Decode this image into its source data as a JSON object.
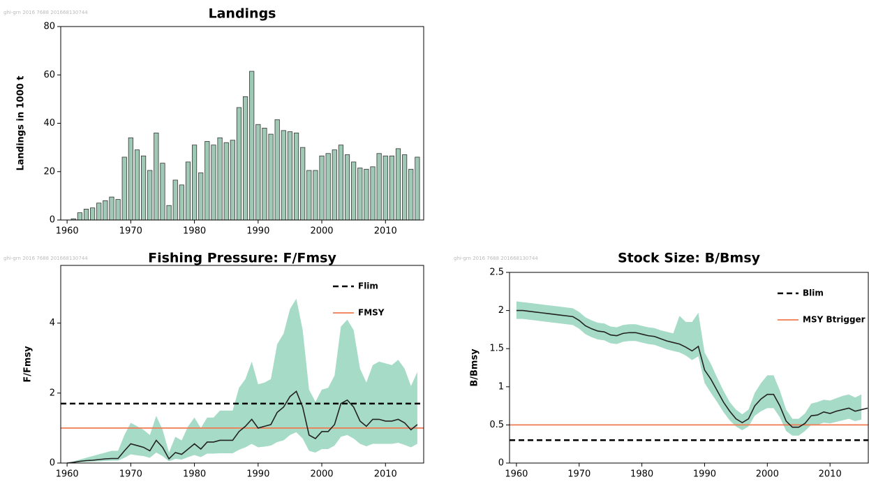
{
  "chart_data": [
    {
      "type": "bar",
      "title": "Landings",
      "ylabel": "Landings in 1000 t",
      "watermark": "ghi-grn 2016 7688 201668130744",
      "x": [
        1960,
        1961,
        1962,
        1963,
        1964,
        1965,
        1966,
        1967,
        1968,
        1969,
        1970,
        1971,
        1972,
        1973,
        1974,
        1975,
        1976,
        1977,
        1978,
        1979,
        1980,
        1981,
        1982,
        1983,
        1984,
        1985,
        1986,
        1987,
        1988,
        1989,
        1990,
        1991,
        1992,
        1993,
        1994,
        1995,
        1996,
        1997,
        1998,
        1999,
        2000,
        2001,
        2002,
        2003,
        2004,
        2005,
        2006,
        2007,
        2008,
        2009,
        2010,
        2011,
        2012,
        2013,
        2014,
        2015
      ],
      "values": [
        0,
        0.5,
        3,
        4.5,
        5,
        7,
        8,
        9.5,
        8.5,
        26,
        34,
        29,
        26.5,
        20.5,
        36,
        23.5,
        6,
        16.5,
        14.5,
        24,
        31,
        19.5,
        32.5,
        31,
        34,
        32,
        33,
        46.5,
        51,
        61.5,
        39.5,
        38,
        35.5,
        41.5,
        37,
        36.5,
        36,
        30,
        20.5,
        20.5,
        26.5,
        27.5,
        29,
        31,
        27,
        24,
        21.5,
        21,
        22,
        27.5,
        26.5,
        26.5,
        29.5,
        27,
        21,
        26
      ],
      "color": "#9fc9b5",
      "xlim": [
        1959,
        2016
      ],
      "xticks": [
        1960,
        1970,
        1980,
        1990,
        2000,
        2010
      ],
      "ylim": [
        0,
        80
      ],
      "yticks": [
        0,
        20,
        40,
        60,
        80
      ]
    },
    {
      "type": "line",
      "title": "Fishing Pressure: F/Fmsy",
      "ylabel": "F/Fmsy",
      "watermark": "ghi-grn 2016 7688 201668130744",
      "x": [
        1960,
        1961,
        1962,
        1963,
        1964,
        1965,
        1966,
        1967,
        1968,
        1969,
        1970,
        1971,
        1972,
        1973,
        1974,
        1975,
        1976,
        1977,
        1978,
        1979,
        1980,
        1981,
        1982,
        1983,
        1984,
        1985,
        1986,
        1987,
        1988,
        1989,
        1990,
        1991,
        1992,
        1993,
        1994,
        1995,
        1996,
        1997,
        1998,
        1999,
        2000,
        2001,
        2002,
        2003,
        2004,
        2005,
        2006,
        2007,
        2008,
        2009,
        2010,
        2011,
        2012,
        2013,
        2014,
        2015
      ],
      "values": [
        0,
        0.02,
        0.05,
        0.07,
        0.08,
        0.1,
        0.12,
        0.13,
        0.13,
        0.35,
        0.55,
        0.5,
        0.45,
        0.35,
        0.65,
        0.45,
        0.12,
        0.3,
        0.25,
        0.4,
        0.55,
        0.4,
        0.6,
        0.6,
        0.65,
        0.65,
        0.65,
        0.9,
        1.05,
        1.25,
        1.0,
        1.05,
        1.1,
        1.45,
        1.6,
        1.9,
        2.05,
        1.6,
        0.8,
        0.7,
        0.9,
        0.9,
        1.1,
        1.7,
        1.8,
        1.6,
        1.2,
        1.05,
        1.25,
        1.25,
        1.2,
        1.2,
        1.25,
        1.15,
        0.95,
        1.1
      ],
      "upper": [
        0,
        0.05,
        0.1,
        0.15,
        0.2,
        0.25,
        0.3,
        0.35,
        0.35,
        0.8,
        1.15,
        1.05,
        0.95,
        0.8,
        1.35,
        0.95,
        0.3,
        0.75,
        0.65,
        1.05,
        1.3,
        1.0,
        1.3,
        1.3,
        1.5,
        1.5,
        1.5,
        2.15,
        2.4,
        2.9,
        2.25,
        2.3,
        2.4,
        3.4,
        3.7,
        4.4,
        4.7,
        3.8,
        2.1,
        1.75,
        2.1,
        2.15,
        2.5,
        3.9,
        4.1,
        3.8,
        2.7,
        2.3,
        2.8,
        2.9,
        2.85,
        2.8,
        2.95,
        2.7,
        2.2,
        2.6
      ],
      "lower": [
        0,
        0.01,
        0.02,
        0.03,
        0.04,
        0.05,
        0.06,
        0.07,
        0.07,
        0.15,
        0.25,
        0.22,
        0.2,
        0.15,
        0.3,
        0.2,
        0.05,
        0.12,
        0.1,
        0.17,
        0.23,
        0.17,
        0.27,
        0.27,
        0.28,
        0.28,
        0.28,
        0.38,
        0.45,
        0.55,
        0.45,
        0.47,
        0.5,
        0.6,
        0.65,
        0.8,
        0.88,
        0.7,
        0.35,
        0.3,
        0.4,
        0.4,
        0.5,
        0.75,
        0.8,
        0.7,
        0.55,
        0.48,
        0.55,
        0.55,
        0.55,
        0.55,
        0.58,
        0.52,
        0.45,
        0.55
      ],
      "line_color": "#222222",
      "band_color": "#a6dbc7",
      "reference_lines": [
        {
          "name": "Flim",
          "value": 1.7,
          "color": "#000000",
          "style": "dashed"
        },
        {
          "name": "FMSY",
          "value": 1.0,
          "color": "#f07a50",
          "style": "solid"
        }
      ],
      "xlim": [
        1959,
        2016
      ],
      "xticks": [
        1960,
        1970,
        1980,
        1990,
        2000,
        2010
      ],
      "ylim": [
        0,
        5.65
      ],
      "yticks": [
        0,
        2,
        4
      ]
    },
    {
      "type": "line",
      "title": "Stock Size: B/Bmsy",
      "ylabel": "B/Bmsy",
      "watermark": "ghi-grn 2016 7688 201668130744",
      "x": [
        1960,
        1961,
        1962,
        1963,
        1964,
        1965,
        1966,
        1967,
        1968,
        1969,
        1970,
        1971,
        1972,
        1973,
        1974,
        1975,
        1976,
        1977,
        1978,
        1979,
        1980,
        1981,
        1982,
        1983,
        1984,
        1985,
        1986,
        1987,
        1988,
        1989,
        1990,
        1991,
        1992,
        1993,
        1994,
        1995,
        1996,
        1997,
        1998,
        1999,
        2000,
        2001,
        2002,
        2003,
        2004,
        2005,
        2006,
        2007,
        2008,
        2009,
        2010,
        2011,
        2012,
        2013,
        2014,
        2015,
        2016
      ],
      "values": [
        2.0,
        2.0,
        1.99,
        1.98,
        1.97,
        1.96,
        1.95,
        1.94,
        1.93,
        1.92,
        1.87,
        1.8,
        1.76,
        1.73,
        1.72,
        1.68,
        1.67,
        1.7,
        1.71,
        1.71,
        1.69,
        1.67,
        1.66,
        1.63,
        1.6,
        1.58,
        1.56,
        1.52,
        1.47,
        1.53,
        1.22,
        1.1,
        0.95,
        0.8,
        0.68,
        0.58,
        0.53,
        0.58,
        0.75,
        0.84,
        0.9,
        0.9,
        0.75,
        0.55,
        0.47,
        0.47,
        0.52,
        0.62,
        0.63,
        0.67,
        0.65,
        0.68,
        0.7,
        0.72,
        0.68,
        0.7,
        0.72
      ],
      "upper": [
        2.12,
        2.11,
        2.1,
        2.09,
        2.08,
        2.07,
        2.06,
        2.05,
        2.04,
        2.03,
        1.98,
        1.91,
        1.87,
        1.84,
        1.83,
        1.79,
        1.78,
        1.81,
        1.82,
        1.82,
        1.8,
        1.78,
        1.77,
        1.74,
        1.72,
        1.7,
        1.93,
        1.85,
        1.85,
        1.97,
        1.45,
        1.3,
        1.12,
        0.95,
        0.8,
        0.7,
        0.64,
        0.7,
        0.92,
        1.05,
        1.15,
        1.15,
        0.95,
        0.7,
        0.58,
        0.58,
        0.65,
        0.78,
        0.8,
        0.83,
        0.82,
        0.85,
        0.88,
        0.9,
        0.86,
        0.9,
        null
      ],
      "lower": [
        1.89,
        1.89,
        1.88,
        1.87,
        1.86,
        1.85,
        1.84,
        1.83,
        1.82,
        1.81,
        1.76,
        1.69,
        1.65,
        1.62,
        1.61,
        1.57,
        1.56,
        1.59,
        1.6,
        1.6,
        1.58,
        1.56,
        1.55,
        1.52,
        1.49,
        1.47,
        1.45,
        1.41,
        1.35,
        1.4,
        1.05,
        0.92,
        0.8,
        0.67,
        0.56,
        0.48,
        0.43,
        0.48,
        0.62,
        0.68,
        0.72,
        0.72,
        0.6,
        0.42,
        0.36,
        0.36,
        0.42,
        0.5,
        0.5,
        0.53,
        0.52,
        0.54,
        0.56,
        0.58,
        0.55,
        0.57,
        null
      ],
      "line_color": "#222222",
      "band_color": "#a6dbc7",
      "reference_lines": [
        {
          "name": "Blim",
          "value": 0.3,
          "color": "#000000",
          "style": "dashed"
        },
        {
          "name": "MSY Btrigger",
          "value": 0.5,
          "color": "#f07a50",
          "style": "solid"
        }
      ],
      "xlim": [
        1958.9,
        2016.1
      ],
      "xticks": [
        1960,
        1970,
        1980,
        1990,
        2000,
        2010
      ],
      "ylim": [
        0,
        2.5
      ],
      "yticks": [
        0,
        0.5,
        1,
        1.5,
        2,
        2.5
      ]
    }
  ]
}
